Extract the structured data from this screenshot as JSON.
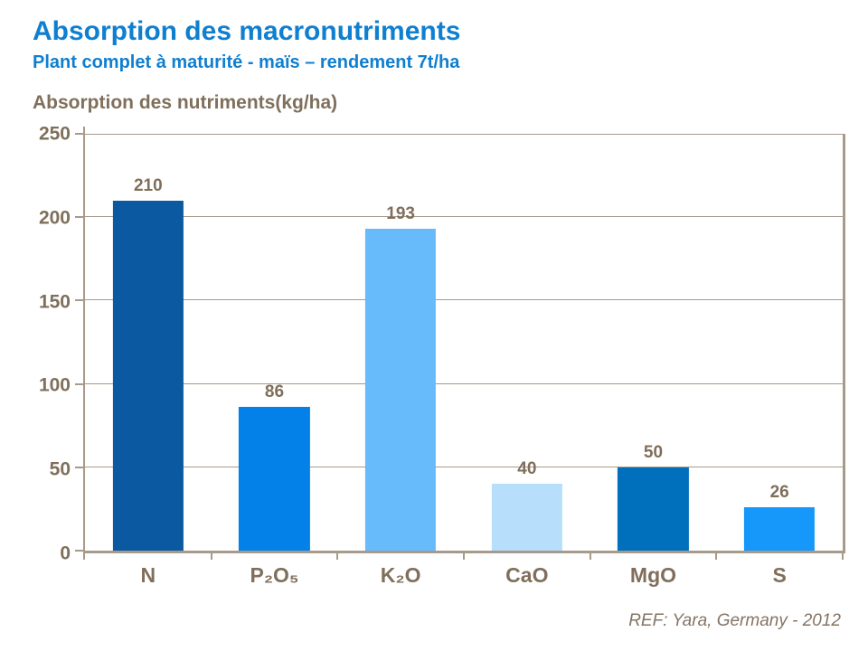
{
  "slide": {
    "title": "Absorption des macronutriments",
    "subtitle": "Plant complet à maturité - maïs – rendement 7t/ha",
    "axis_title": "Absorption des nutriments(kg/ha)",
    "reference": "REF: Yara, Germany - 2012"
  },
  "colors": {
    "title_blue": "#0f7fd0",
    "text_brown": "#7f6f5b",
    "grid_tan": "#a79a8b",
    "background": "#ffffff"
  },
  "chart_data": {
    "type": "bar",
    "title": "Absorption des nutriments(kg/ha)",
    "xlabel": "",
    "ylabel": "Absorption des nutriments (kg/ha)",
    "categories": [
      "N",
      "P₂O₅",
      "K₂O",
      "CaO",
      "MgO",
      "S"
    ],
    "values": [
      210,
      86,
      193,
      40,
      50,
      26
    ],
    "bar_colors": [
      "#0b5aa1",
      "#0381e8",
      "#67bbfb",
      "#b7defb",
      "#0070bd",
      "#1598fa"
    ],
    "ylim": [
      0,
      250
    ],
    "yticks": [
      0,
      50,
      100,
      150,
      200,
      250
    ],
    "grid": true,
    "legend": false,
    "data_labels": true
  }
}
